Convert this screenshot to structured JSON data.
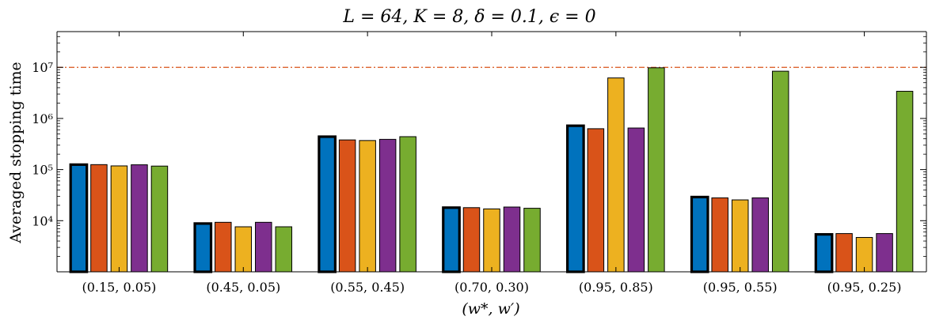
{
  "chart_data": {
    "type": "bar",
    "title": "L = 64,  K = 8,  δ = 0.1,  ϵ = 0",
    "xlabel": "(w*, w′)",
    "ylabel": "Averaged stopping time",
    "yscale": "log",
    "ylim": [
      1000,
      50000000
    ],
    "yticks": [
      10000,
      100000,
      1000000,
      10000000
    ],
    "ytick_labels": [
      "10⁴",
      "10⁵",
      "10⁶",
      "10⁷"
    ],
    "reference_line": 10000000,
    "categories": [
      "(0.15, 0.05)",
      "(0.45, 0.05)",
      "(0.55, 0.45)",
      "(0.70, 0.30)",
      "(0.95, 0.85)",
      "(0.95, 0.55)",
      "(0.95, 0.25)"
    ],
    "series": [
      {
        "color": "#0072BD",
        "highlight": true,
        "values": [
          125000,
          8800,
          440000,
          18000,
          720000,
          29000,
          5400
        ]
      },
      {
        "color": "#D95319",
        "highlight": false,
        "values": [
          125000,
          9300,
          380000,
          18000,
          630000,
          28000,
          5600
        ]
      },
      {
        "color": "#EDB120",
        "highlight": false,
        "values": [
          118000,
          7600,
          370000,
          17000,
          6200000,
          25500,
          4700
        ]
      },
      {
        "color": "#7E2F8E",
        "highlight": false,
        "values": [
          124000,
          9300,
          390000,
          18500,
          650000,
          28000,
          5600
        ]
      },
      {
        "color": "#77AC30",
        "highlight": false,
        "values": [
          117000,
          7600,
          440000,
          17500,
          9800000,
          8400000,
          3400000
        ]
      }
    ],
    "colors": {
      "reference_line": "#D95319"
    },
    "grid": false,
    "legend": "none"
  }
}
